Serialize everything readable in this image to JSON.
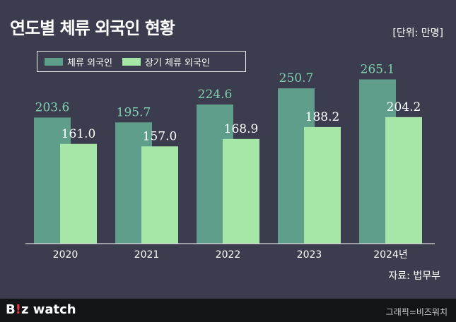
{
  "header": {
    "title": "연도별 체류 외국인 현황",
    "unit": "[단위: 만명]"
  },
  "chart_data": {
    "type": "bar",
    "categories": [
      "2020",
      "2021",
      "2022",
      "2023",
      "2024년"
    ],
    "series": [
      {
        "name": "체류 외국인",
        "values": [
          203.6,
          195.7,
          224.6,
          250.7,
          265.1
        ],
        "labels": [
          "203.6",
          "195.7",
          "224.6",
          "250.7",
          "265.1"
        ],
        "color": "#5f9e8a",
        "label_color": "#7fcfb0"
      },
      {
        "name": "장기 체류 외국인",
        "values": [
          161.0,
          157.0,
          168.9,
          188.2,
          204.2
        ],
        "labels": [
          "161.0",
          "157.0",
          "168.9",
          "188.2",
          "204.2"
        ],
        "color": "#a6e7a8",
        "label_color": "#ffffff"
      }
    ],
    "ylim": [
      0,
      285
    ],
    "legend": "top-left",
    "grid": false
  },
  "source": "자료: 법무부",
  "footer": {
    "logo_b": "B",
    "logo_mark": "!",
    "logo_rest": "z watch",
    "credit": "그래픽=비즈워치"
  }
}
